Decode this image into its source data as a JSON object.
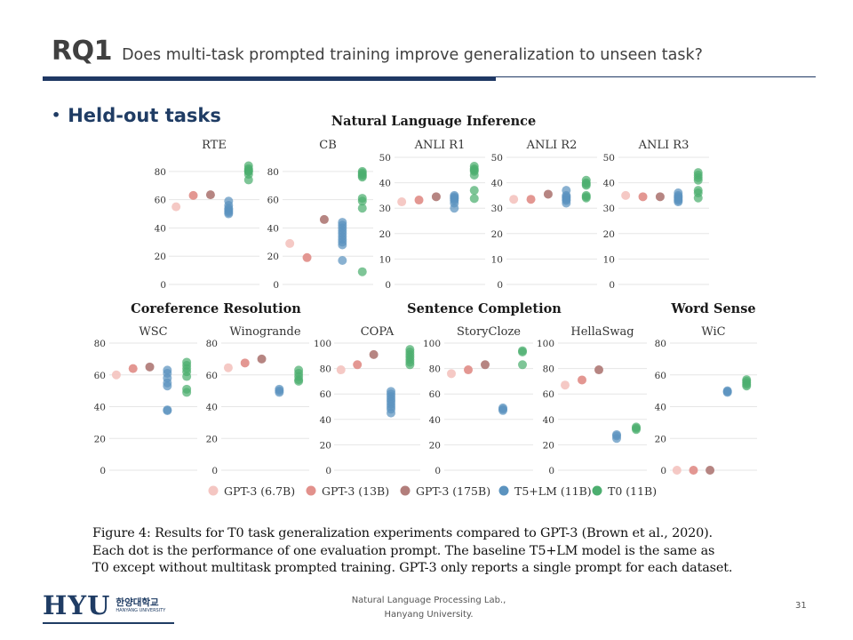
{
  "header": {
    "rq_label": "RQ1",
    "question": "Does multi-task prompted training improve generalization to unseen task?"
  },
  "bullet": "Held-out tasks",
  "chart_data": {
    "type": "scatter",
    "group_titles": [
      "Natural Language Inference",
      "Coreference Resolution",
      "Sentence Completion",
      "Word Sense"
    ],
    "legend": [
      {
        "name": "GPT-3 (6.7B)",
        "color": "#f4c6c2"
      },
      {
        "name": "GPT-3 (13B)",
        "color": "#e2918c"
      },
      {
        "name": "GPT-3 (175B)",
        "color": "#b27e7b"
      },
      {
        "name": "T5+LM (11B)",
        "color": "#5b93bf"
      },
      {
        "name": "T0 (11B)",
        "color": "#4cae6f"
      }
    ],
    "panels": [
      {
        "title": "RTE",
        "ylim": [
          0,
          90
        ],
        "yticks": [
          0,
          20,
          40,
          60,
          80
        ],
        "series": [
          [
            55
          ],
          [
            63
          ],
          [
            63.5
          ],
          [
            59,
            56,
            54,
            53,
            52,
            51,
            50
          ],
          [
            84,
            82,
            81,
            80,
            80,
            78,
            74
          ]
        ]
      },
      {
        "title": "CB",
        "ylim": [
          0,
          90
        ],
        "yticks": [
          0,
          20,
          40,
          60,
          80
        ],
        "series": [
          [
            29
          ],
          [
            19
          ],
          [
            46
          ],
          [
            44,
            42,
            40,
            38,
            36,
            34,
            32,
            30,
            28,
            17
          ],
          [
            80,
            79,
            78,
            77,
            76,
            61,
            59,
            54,
            9
          ]
        ]
      },
      {
        "title": "ANLI R1",
        "ylim": [
          0,
          50
        ],
        "yticks": [
          0,
          10,
          20,
          30,
          40,
          50
        ],
        "series": [
          [
            32.5
          ],
          [
            33.2
          ],
          [
            34.5
          ],
          [
            35,
            34.5,
            34,
            33.6,
            33,
            32,
            30
          ],
          [
            46.5,
            45.5,
            45,
            44.5,
            43,
            37,
            33.8
          ]
        ]
      },
      {
        "title": "ANLI R2",
        "ylim": [
          0,
          50
        ],
        "yticks": [
          0,
          10,
          20,
          30,
          40,
          50
        ],
        "series": [
          [
            33.5
          ],
          [
            33.5
          ],
          [
            35.5
          ],
          [
            37,
            35,
            34.5,
            34,
            33.5,
            33,
            32
          ],
          [
            41,
            40,
            39.5,
            39,
            35,
            34.5,
            34
          ]
        ]
      },
      {
        "title": "ANLI R3",
        "ylim": [
          0,
          50
        ],
        "yticks": [
          0,
          10,
          20,
          30,
          40,
          50
        ],
        "series": [
          [
            35
          ],
          [
            34.5
          ],
          [
            34.5
          ],
          [
            36,
            35,
            34.5,
            34,
            33.5,
            33,
            32.5
          ],
          [
            44,
            43,
            42,
            41,
            37,
            36,
            34
          ]
        ]
      },
      {
        "title": "WSC",
        "ylim": [
          0,
          80
        ],
        "yticks": [
          0,
          20,
          40,
          60,
          80
        ],
        "series": [
          [
            60
          ],
          [
            64
          ],
          [
            65
          ],
          [
            63,
            61,
            58,
            55,
            53,
            38,
            37.5
          ],
          [
            68,
            66,
            64,
            62,
            59,
            51,
            49
          ]
        ]
      },
      {
        "title": "Winogrande",
        "ylim": [
          0,
          80
        ],
        "yticks": [
          0,
          20,
          40,
          60,
          80
        ],
        "series": [
          [
            64.5
          ],
          [
            67.5
          ],
          [
            70
          ],
          [
            51,
            50,
            49
          ],
          [
            63,
            61,
            59,
            57,
            56
          ]
        ]
      },
      {
        "title": "COPA",
        "ylim": [
          0,
          100
        ],
        "yticks": [
          0,
          20,
          40,
          60,
          80,
          100
        ],
        "series": [
          [
            79
          ],
          [
            83
          ],
          [
            91
          ],
          [
            62,
            60,
            58,
            56,
            54,
            52,
            50,
            48,
            45
          ],
          [
            95,
            93,
            91,
            89,
            87,
            85,
            83
          ]
        ]
      },
      {
        "title": "StoryCloze",
        "ylim": [
          0,
          100
        ],
        "yticks": [
          0,
          20,
          40,
          60,
          80,
          100
        ],
        "series": [
          [
            76
          ],
          [
            79
          ],
          [
            83
          ],
          [
            49,
            48,
            47
          ],
          [
            94,
            93,
            83
          ]
        ]
      },
      {
        "title": "HellaSwag",
        "ylim": [
          0,
          100
        ],
        "yticks": [
          0,
          20,
          40,
          60,
          80,
          100
        ],
        "series": [
          [
            67
          ],
          [
            71
          ],
          [
            79
          ],
          [
            28,
            27,
            25
          ],
          [
            34,
            33,
            32
          ]
        ]
      },
      {
        "title": "WiC",
        "ylim": [
          0,
          80
        ],
        "yticks": [
          0,
          20,
          40,
          60,
          80
        ],
        "series": [
          [
            0
          ],
          [
            0
          ],
          [
            0
          ],
          [
            50,
            49.5,
            49
          ],
          [
            57,
            56,
            55,
            54,
            53
          ]
        ]
      }
    ]
  },
  "caption": [
    "Figure 4: Results for T0 task generalization experiments compared to GPT-3 (Brown et al., 2020).",
    "Each dot is the performance of one evaluation prompt. The baseline T5+LM model is the same as",
    "T0 except without multitask prompted training. GPT-3 only reports a single prompt for each dataset."
  ],
  "logo": {
    "main": "HYU",
    "korean": "한양대학교",
    "english": "HANYANG UNIVERSITY"
  },
  "footer": {
    "line1": "Natural Language Processing Lab.,",
    "line2": "Hanyang University.",
    "page": "31"
  }
}
